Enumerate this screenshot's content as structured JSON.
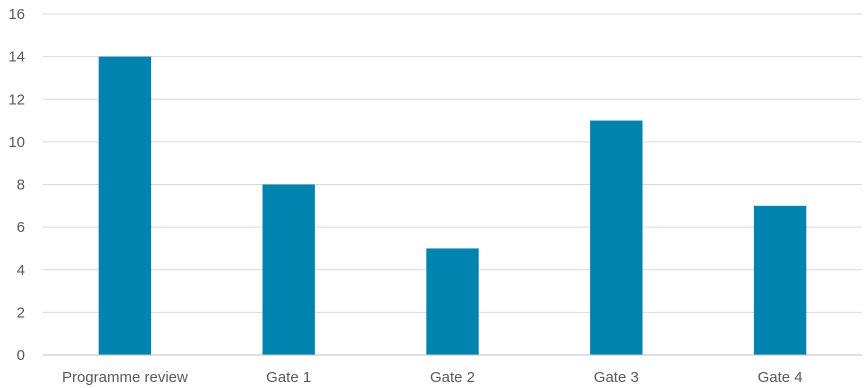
{
  "chart_data": {
    "type": "bar",
    "title": "",
    "xlabel": "",
    "ylabel": "",
    "categories": [
      "Programme review",
      "Gate 1",
      "Gate 2",
      "Gate 3",
      "Gate 4"
    ],
    "values": [
      14,
      8,
      5,
      11,
      7
    ],
    "ylim": [
      0,
      16
    ],
    "yticks": [
      0,
      2,
      4,
      6,
      8,
      10,
      12,
      14,
      16
    ],
    "grid": true,
    "legend": "none",
    "bar_color": "#0083AF"
  }
}
